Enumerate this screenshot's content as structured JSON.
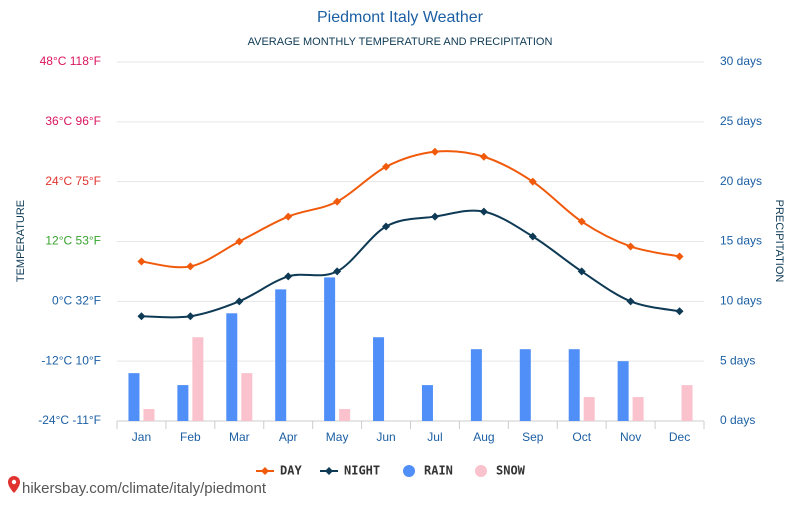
{
  "chart_data": {
    "type": "line",
    "title": "Piedmont Italy Weather",
    "subtitle": "AVERAGE MONTHLY TEMPERATURE AND PRECIPITATION",
    "y_label": "TEMPERATURE",
    "y2_label": "PRECIPITATION",
    "categories": [
      "Jan",
      "Feb",
      "Mar",
      "Apr",
      "May",
      "Jun",
      "Jul",
      "Aug",
      "Sep",
      "Oct",
      "Nov",
      "Dec"
    ],
    "series": [
      {
        "name": "DAY",
        "type": "line",
        "color": "#f05a0a",
        "values": [
          8,
          7,
          12,
          17,
          20,
          27,
          30,
          29,
          24,
          16,
          11,
          9
        ]
      },
      {
        "name": "NIGHT",
        "type": "line",
        "color": "#0e3a55",
        "values": [
          -3,
          -3,
          0,
          5,
          6,
          15,
          17,
          18,
          13,
          6,
          0,
          -2
        ]
      },
      {
        "name": "RAIN",
        "type": "bar",
        "axis": "y2",
        "color": "#4f8ff7",
        "values": [
          4,
          3,
          9,
          11,
          12,
          7,
          3,
          6,
          6,
          6,
          5,
          0
        ]
      },
      {
        "name": "SNOW",
        "type": "bar",
        "axis": "y2",
        "color": "#f9c2cc",
        "values": [
          1,
          7,
          4,
          0,
          1,
          0,
          0,
          0,
          0,
          2,
          2,
          3
        ]
      }
    ],
    "ylim": [
      -24,
      48
    ],
    "yticks": [
      {
        "value": -24,
        "label": "-24°C -11°F"
      },
      {
        "value": -12,
        "label": "-12°C 10°F"
      },
      {
        "value": 0,
        "label": "0°C 32°F"
      },
      {
        "value": 12,
        "label": "12°C 53°F"
      },
      {
        "value": 24,
        "label": "24°C 75°F"
      },
      {
        "value": 36,
        "label": "36°C 96°F"
      },
      {
        "value": 48,
        "label": "48°C 118°F"
      }
    ],
    "ytick_colors": [
      "#1c5fa3",
      "#1c5fa3",
      "#1c5fa3",
      "#38a32f",
      "#e0332f",
      "#d9155d",
      "#d9155d"
    ],
    "y2lim": [
      0,
      30
    ],
    "y2ticks": [
      {
        "value": 0,
        "label": "0 days"
      },
      {
        "value": 5,
        "label": "5 days"
      },
      {
        "value": 10,
        "label": "10 days"
      },
      {
        "value": 15,
        "label": "15 days"
      },
      {
        "value": 20,
        "label": "20 days"
      },
      {
        "value": 25,
        "label": "25 days"
      },
      {
        "value": 30,
        "label": "30 days"
      }
    ],
    "grid": true,
    "legend": "bottom",
    "footer": "hikersbay.com/climate/italy/piedmont"
  }
}
